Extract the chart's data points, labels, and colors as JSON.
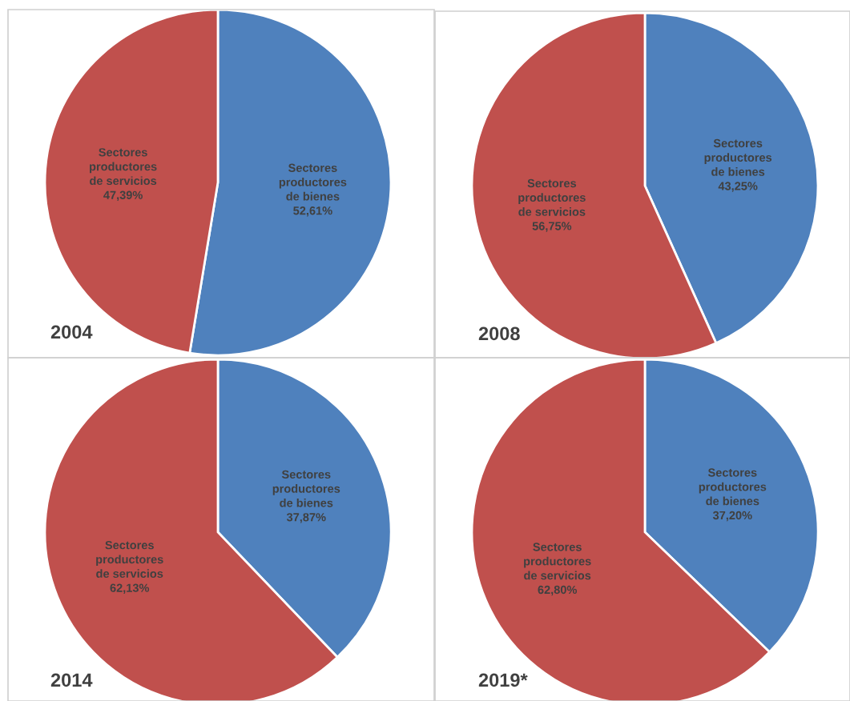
{
  "chart_data": [
    {
      "type": "pie",
      "title": "2004",
      "categories": [
        "Sectores\nproductores\nde bienes",
        "Sectores\nproductores\nde servicios"
      ],
      "values": [
        52.61,
        47.39
      ],
      "colors": [
        "#4f81bd",
        "#c0504d"
      ],
      "value_labels": [
        "52,61%",
        "47,39%"
      ]
    },
    {
      "type": "pie",
      "title": "2008",
      "categories": [
        "Sectores\nproductores\nde bienes",
        "Sectores\nproductores\nde servicios"
      ],
      "values": [
        43.25,
        56.75
      ],
      "colors": [
        "#4f81bd",
        "#c0504d"
      ],
      "value_labels": [
        "43,25%",
        "56,75%"
      ]
    },
    {
      "type": "pie",
      "title": "2014",
      "categories": [
        "Sectores\nproductores\nde bienes",
        "Sectores\nproductores\nde servicios"
      ],
      "values": [
        37.87,
        62.13
      ],
      "colors": [
        "#4f81bd",
        "#c0504d"
      ],
      "value_labels": [
        "37,87%",
        "62,13%"
      ]
    },
    {
      "type": "pie",
      "title": "2019*",
      "categories": [
        "Sectores\nproductores\nde bienes",
        "Sectores\nproductores\nde servicios"
      ],
      "values": [
        37.2,
        62.8
      ],
      "colors": [
        "#4f81bd",
        "#c0504d"
      ],
      "value_labels": [
        "37,20%",
        "62,80%"
      ]
    }
  ]
}
